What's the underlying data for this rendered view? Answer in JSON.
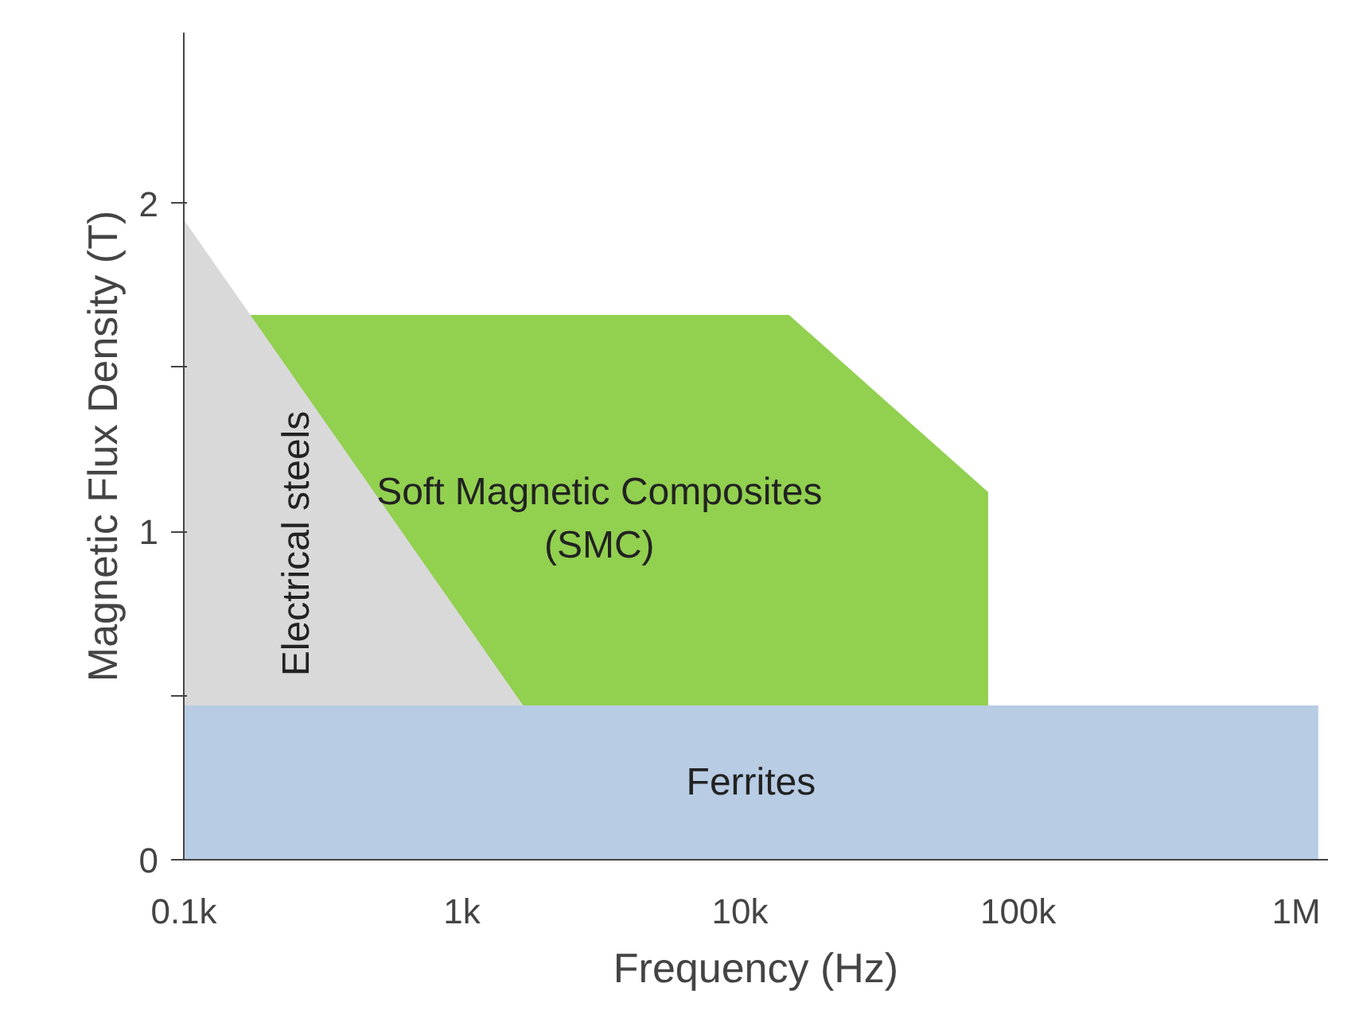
{
  "chart_data": {
    "type": "area",
    "xlabel": "Frequency (Hz)",
    "ylabel": "Magnetic Flux Density (T)",
    "log": "x",
    "xlim": [
      100,
      1300000
    ],
    "xticks": [
      {
        "value": 100,
        "label": "0.1k"
      },
      {
        "value": 1000,
        "label": "1k"
      },
      {
        "value": 10000,
        "label": "10k"
      },
      {
        "value": 100000,
        "label": "100k"
      },
      {
        "value": 1000000,
        "label": "1M"
      }
    ],
    "ylim": [
      0,
      2.52
    ],
    "yticks": [
      0,
      {
        "value": 0.5,
        "label": null
      },
      1,
      {
        "value": 1.5,
        "label": null
      },
      2
    ],
    "grid": false,
    "legend": false,
    "series": [
      {
        "name": "Soft Magnetic Composites (SMC)",
        "color": "#92d050",
        "x": [
          173,
          15000,
          78000
        ],
        "values": [
          1.66,
          1.66,
          1.12
        ]
      },
      {
        "name": "Electrical steels",
        "color": "#d9d9d9",
        "x": [
          100,
          1660
        ],
        "values": [
          1.95,
          0.47
        ]
      },
      {
        "name": "Ferrites",
        "color": "#b8cce4",
        "x": [
          100,
          1200000
        ],
        "values": [
          0.47,
          0.47
        ]
      }
    ]
  }
}
